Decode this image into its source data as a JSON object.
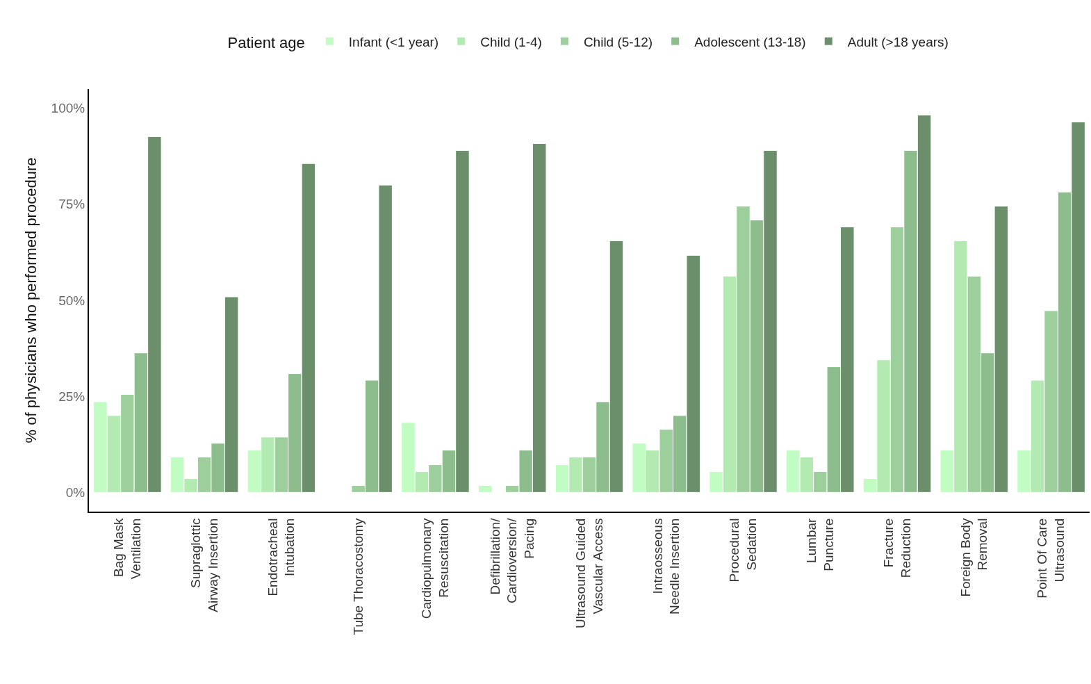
{
  "chart_data": {
    "type": "bar",
    "ylabel": "% of physicians who performed procedure",
    "legend_title": "Patient age",
    "legend": "top",
    "categories": [
      "Bag Mask\nVentilation",
      "Supraglottic\nAirway Insertion",
      "Endotracheal\nIntubation",
      "Tube Thoracostomy",
      "Cardiopulmonary\nResuscitation",
      "Defibrillation/\nCardioversion/\nPacing",
      "Ultrasound Guided\nVascular Access",
      "Intraosseous\nNeedle Insertion",
      "Procedural\nSedation",
      "Lumbar\nPuncture",
      "Fracture\nReduction",
      "Foreign Body\nRemoval",
      "Point Of Care\nUltrasound"
    ],
    "series": [
      {
        "name": "Infant (<1 year)",
        "color": "#c1fcc3",
        "values": [
          23.6,
          9.2,
          11,
          null,
          18.2,
          1.8,
          7.2,
          12.8,
          5.4,
          11,
          3.6,
          11,
          11
        ]
      },
      {
        "name": "Child (1-4)",
        "color": "#b2eab2",
        "values": [
          20,
          3.6,
          14.4,
          null,
          5.4,
          null,
          9.2,
          11,
          56.3,
          9.2,
          34.5,
          65.5,
          29.2
        ]
      },
      {
        "name": "Child (5-12)",
        "color": "#9ccf9c",
        "values": [
          25.5,
          9.2,
          14.4,
          1.8,
          7.2,
          1.8,
          9.2,
          16.4,
          74.5,
          5.4,
          69.1,
          56.3,
          47.3
        ]
      },
      {
        "name": "Adolescent (13-18)",
        "color": "#8dbd8d",
        "values": [
          36.3,
          12.8,
          30.9,
          29.2,
          11,
          11,
          23.6,
          20,
          70.9,
          32.7,
          89,
          36.3,
          78.2
        ]
      },
      {
        "name": "Adult (>18 years)",
        "color": "#6a8f6a",
        "values": [
          92.6,
          50.9,
          85.6,
          80,
          89,
          90.8,
          65.5,
          61.7,
          89,
          69.1,
          98.2,
          74.5,
          96.4
        ]
      }
    ],
    "ylim": [
      -5,
      105
    ],
    "yticks": [
      {
        "value": 0,
        "label": "0%"
      },
      {
        "value": 25,
        "label": "25%"
      },
      {
        "value": 50,
        "label": "50%"
      },
      {
        "value": 75,
        "label": "75%"
      },
      {
        "value": 100,
        "label": "100%"
      }
    ]
  }
}
